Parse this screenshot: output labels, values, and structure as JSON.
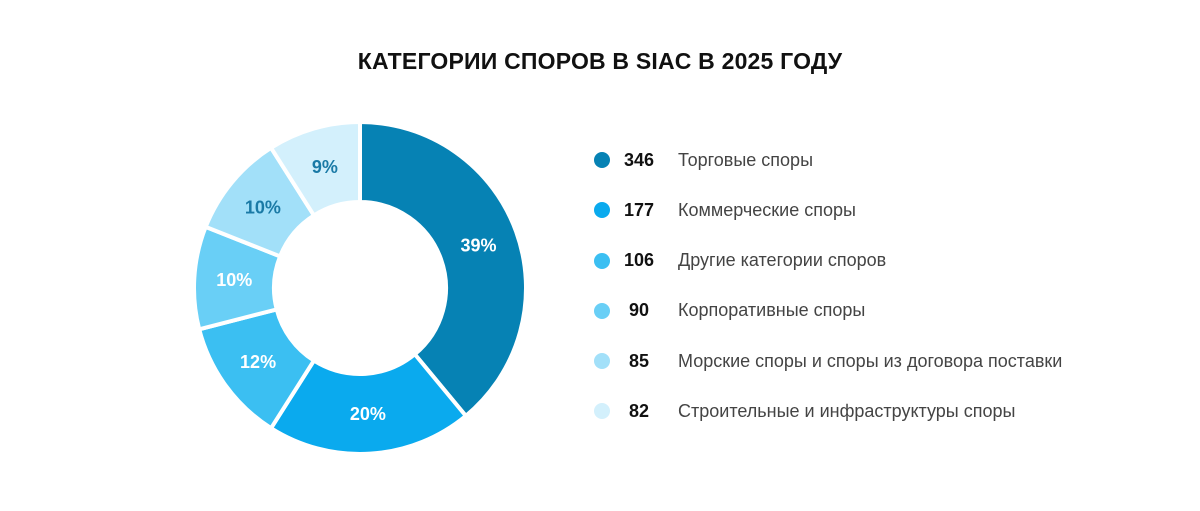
{
  "chart_data": {
    "type": "pie",
    "title": "КАТЕГОРИИ СПОРОВ В SIAC В 2025 ГОДУ",
    "slices": [
      {
        "name": "Торговые споры",
        "count": "346",
        "value": 39,
        "label": "39%",
        "color": "#0682b4",
        "text_color": "#ffffff"
      },
      {
        "name": "Коммерческие споры",
        "count": "177",
        "value": 20,
        "label": "20%",
        "color": "#0aaaee",
        "text_color": "#ffffff"
      },
      {
        "name": "Другие категории споров",
        "count": "106",
        "value": 12,
        "label": "12%",
        "color": "#3bbff2",
        "text_color": "#ffffff"
      },
      {
        "name": "Корпоративные споры",
        "count": "90",
        "value": 10,
        "label": "10%",
        "color": "#69cff6",
        "text_color": "#ffffff"
      },
      {
        "name": "Морские споры и споры из договора поставки",
        "count": "85",
        "value": 10,
        "label": "10%",
        "color": "#a2e0f9",
        "text_color": "#1a7aa6"
      },
      {
        "name": "Строительные и инфраструктуры споры",
        "count": "82",
        "value": 9,
        "label": "9%",
        "color": "#d3f0fc",
        "text_color": "#1a7aa6"
      }
    ],
    "legend_position": "right"
  }
}
